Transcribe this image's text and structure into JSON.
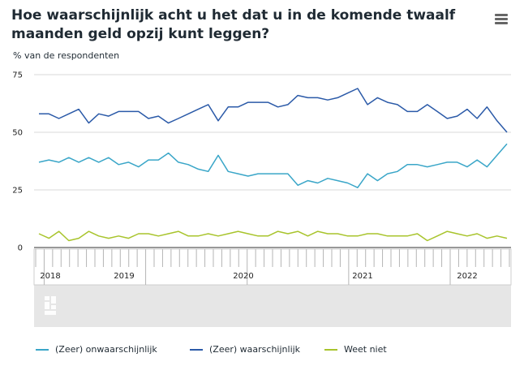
{
  "colors": {
    "onwaarschijnlijk": "#3aa6c8",
    "waarschijnlijk": "#2b5aa8",
    "weet_niet": "#a8c42c",
    "navigator_bg": "#e6e6e6"
  },
  "chart_data": {
    "type": "line",
    "title": "Hoe waarschijnlijk acht u het dat u in de komende twaalf maanden geld opzij kunt leggen?",
    "subtitle": "% van de respondenten",
    "ylim": [
      0,
      75
    ],
    "yticks": [
      "0",
      "25",
      "50",
      "75"
    ],
    "x_start": "2017-12",
    "x_end": "2022-07",
    "navigator_years": [
      "2018",
      "2019",
      "2020",
      "2021",
      "2022"
    ],
    "series": [
      {
        "name": "(Zeer) onwaarschijnlijk",
        "color": "#3aa6c8",
        "values": [
          37,
          38,
          37,
          39,
          37,
          39,
          37,
          39,
          36,
          37,
          35,
          38,
          38,
          41,
          37,
          36,
          34,
          33,
          40,
          33,
          32,
          31,
          32,
          32,
          32,
          32,
          27,
          29,
          28,
          30,
          29,
          28,
          26,
          32,
          29,
          32,
          33,
          36,
          36,
          35,
          36,
          37,
          37,
          35,
          38,
          35,
          40,
          45
        ]
      },
      {
        "name": "(Zeer) waarschijnlijk",
        "color": "#2b5aa8",
        "values": [
          58,
          58,
          56,
          58,
          60,
          54,
          58,
          57,
          59,
          59,
          59,
          56,
          57,
          54,
          56,
          58,
          60,
          62,
          55,
          61,
          61,
          63,
          63,
          63,
          61,
          62,
          66,
          65,
          65,
          64,
          65,
          67,
          69,
          62,
          65,
          63,
          62,
          59,
          59,
          62,
          59,
          56,
          57,
          60,
          56,
          61,
          55,
          50
        ]
      },
      {
        "name": "Weet niet",
        "color": "#a8c42c",
        "values": [
          6,
          4,
          7,
          3,
          4,
          7,
          5,
          4,
          5,
          4,
          6,
          6,
          5,
          6,
          7,
          5,
          5,
          6,
          5,
          6,
          7,
          6,
          5,
          5,
          7,
          6,
          7,
          5,
          7,
          6,
          6,
          5,
          5,
          6,
          6,
          5,
          5,
          5,
          6,
          3,
          5,
          7,
          6,
          5,
          6,
          4,
          5,
          4
        ]
      }
    ]
  }
}
